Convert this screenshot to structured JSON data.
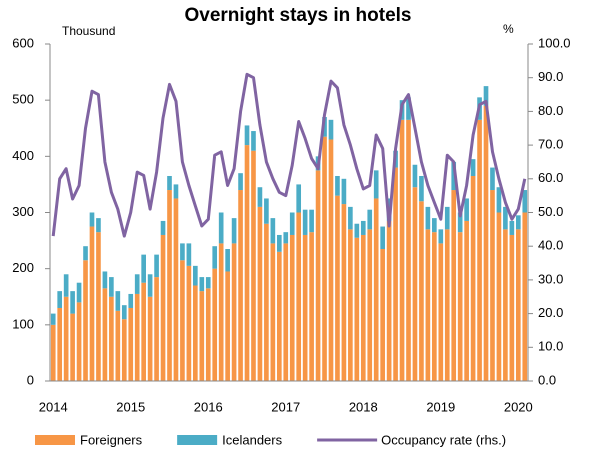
{
  "chart_data": {
    "type": "bar_line",
    "title": "Overnight stays in hotels",
    "y_label": "Thousund",
    "y2_label": "%",
    "categories": [
      "2014",
      null,
      null,
      null,
      null,
      null,
      null,
      null,
      null,
      null,
      null,
      null,
      "2015",
      null,
      null,
      null,
      null,
      null,
      null,
      null,
      null,
      null,
      null,
      null,
      "2016",
      null,
      null,
      null,
      null,
      null,
      null,
      null,
      null,
      null,
      null,
      null,
      "2017",
      null,
      null,
      null,
      null,
      null,
      null,
      null,
      null,
      null,
      null,
      null,
      "2018",
      null,
      null,
      null,
      null,
      null,
      null,
      null,
      null,
      null,
      null,
      null,
      "2019",
      null,
      null,
      null,
      null,
      null,
      null,
      null,
      null,
      null,
      null,
      null,
      "2020",
      null
    ],
    "series": [
      {
        "name": "Foreigners",
        "color": "#f79646",
        "kind": "bar",
        "values": [
          100,
          130,
          150,
          120,
          140,
          215,
          275,
          265,
          165,
          150,
          125,
          110,
          130,
          155,
          175,
          150,
          185,
          260,
          340,
          325,
          215,
          205,
          170,
          160,
          165,
          200,
          245,
          195,
          245,
          340,
          420,
          410,
          310,
          280,
          245,
          230,
          245,
          260,
          300,
          260,
          265,
          375,
          435,
          430,
          330,
          315,
          270,
          255,
          260,
          270,
          325,
          235,
          285,
          380,
          465,
          465,
          345,
          320,
          270,
          265,
          245,
          270,
          340,
          265,
          285,
          365,
          465,
          490,
          340,
          300,
          270,
          260,
          270,
          300
        ]
      },
      {
        "name": "Icelanders",
        "color": "#4bacc6",
        "kind": "bar",
        "values": [
          20,
          30,
          40,
          40,
          35,
          25,
          25,
          25,
          30,
          35,
          35,
          25,
          25,
          35,
          50,
          40,
          40,
          25,
          25,
          25,
          30,
          40,
          35,
          25,
          20,
          40,
          55,
          40,
          45,
          30,
          35,
          35,
          35,
          45,
          45,
          30,
          20,
          40,
          50,
          45,
          40,
          25,
          35,
          35,
          35,
          45,
          40,
          25,
          25,
          35,
          50,
          40,
          40,
          30,
          35,
          40,
          40,
          45,
          40,
          25,
          25,
          40,
          50,
          35,
          40,
          30,
          40,
          35,
          40,
          45,
          40,
          25,
          25,
          40
        ]
      },
      {
        "name": "Occupancy rate (rhs.)",
        "color": "#8064a2",
        "kind": "line",
        "axis": "y2",
        "values": [
          43,
          60,
          63,
          54,
          58,
          75,
          86,
          85,
          65,
          56,
          51,
          43,
          50,
          62,
          61,
          51,
          62,
          78,
          88,
          83,
          65,
          58,
          52,
          46,
          48,
          67,
          68,
          58,
          63,
          80,
          91,
          90,
          76,
          65,
          60,
          56,
          55,
          64,
          77,
          72,
          66,
          63,
          79,
          89,
          87,
          76,
          70,
          63,
          57,
          58,
          73,
          69,
          46,
          69,
          82,
          85,
          75,
          65,
          58,
          53,
          48,
          67,
          65,
          49,
          58,
          73,
          82,
          83,
          68,
          60,
          53,
          48,
          51,
          60
        ]
      }
    ],
    "ylim": [
      0,
      600
    ],
    "yticks": [
      0,
      100,
      200,
      300,
      400,
      500,
      600
    ],
    "y2lim": [
      0,
      100
    ],
    "y2ticks": [
      {
        "value": 0,
        "label": "0.0"
      },
      {
        "value": 10,
        "label": "10.0"
      },
      {
        "value": 20,
        "label": "20.0"
      },
      {
        "value": 30,
        "label": "30.0"
      },
      {
        "value": 40,
        "label": "40.0"
      },
      {
        "value": 50,
        "label": "50.0"
      },
      {
        "value": 60,
        "label": "60.0"
      },
      {
        "value": 70,
        "label": "70.0"
      },
      {
        "value": 80,
        "label": "80.0"
      },
      {
        "value": 90,
        "label": "90.0"
      },
      {
        "value": 100,
        "label": "100.0"
      }
    ],
    "grid": false,
    "legend": "bottom"
  }
}
